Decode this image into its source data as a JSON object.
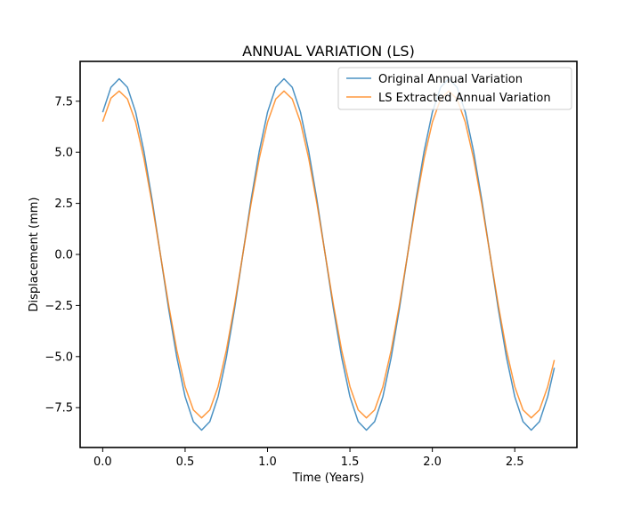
{
  "chart_data": {
    "type": "line",
    "title": "ANNUAL VARIATION (LS)",
    "xlabel": "Time (Years)",
    "ylabel": "Displacement (mm)",
    "xlim": [
      -0.137,
      2.877
    ],
    "ylim": [
      -9.45,
      9.45
    ],
    "xticks": [
      0.0,
      0.5,
      1.0,
      1.5,
      2.0,
      2.5
    ],
    "xtick_labels": [
      "0.0",
      "0.5",
      "1.0",
      "1.5",
      "2.0",
      "2.5"
    ],
    "yticks": [
      -7.5,
      -5.0,
      -2.5,
      0.0,
      2.5,
      5.0,
      7.5
    ],
    "ytick_labels": [
      "−7.5",
      "−5.0",
      "−2.5",
      "0.0",
      "2.5",
      "5.0",
      "7.5"
    ],
    "grid": false,
    "legend_position": "top-right",
    "series": [
      {
        "name": "Original Annual Variation",
        "color": "#1f77b4",
        "x": [
          0.0,
          0.05,
          0.1,
          0.15,
          0.2,
          0.25,
          0.3,
          0.35,
          0.4,
          0.45,
          0.5,
          0.55,
          0.6,
          0.65,
          0.7,
          0.75,
          0.8,
          0.85,
          0.9,
          0.95,
          1.0,
          1.05,
          1.1,
          1.15,
          1.2,
          1.25,
          1.3,
          1.35,
          1.4,
          1.45,
          1.5,
          1.55,
          1.6,
          1.65,
          1.7,
          1.75,
          1.8,
          1.85,
          1.9,
          1.95,
          2.0,
          2.05,
          2.1,
          2.15,
          2.2,
          2.25,
          2.3,
          2.35,
          2.4,
          2.45,
          2.5,
          2.55,
          2.6,
          2.65,
          2.7,
          2.74
        ],
        "y": [
          6.96,
          8.18,
          8.6,
          8.18,
          6.96,
          5.05,
          2.66,
          0.0,
          -2.66,
          -5.05,
          -6.96,
          -8.18,
          -8.6,
          -8.18,
          -6.96,
          -5.05,
          -2.66,
          0.0,
          2.66,
          5.05,
          6.96,
          8.18,
          8.6,
          8.18,
          6.96,
          5.05,
          2.66,
          0.0,
          -2.66,
          -5.05,
          -6.96,
          -8.18,
          -8.6,
          -8.18,
          -6.96,
          -5.05,
          -2.66,
          0.0,
          2.66,
          5.05,
          6.96,
          8.18,
          8.6,
          8.18,
          6.96,
          5.05,
          2.66,
          0.0,
          -2.66,
          -5.05,
          -6.96,
          -8.18,
          -8.6,
          -8.18,
          -6.96,
          -5.55
        ]
      },
      {
        "name": "LS Extracted Annual Variation",
        "color": "#ff7f0e",
        "x": [
          0.0,
          0.05,
          0.1,
          0.15,
          0.2,
          0.25,
          0.3,
          0.35,
          0.4,
          0.45,
          0.5,
          0.55,
          0.6,
          0.65,
          0.7,
          0.75,
          0.8,
          0.85,
          0.9,
          0.95,
          1.0,
          1.05,
          1.1,
          1.15,
          1.2,
          1.25,
          1.3,
          1.35,
          1.4,
          1.45,
          1.5,
          1.55,
          1.6,
          1.65,
          1.7,
          1.75,
          1.8,
          1.85,
          1.9,
          1.95,
          2.0,
          2.05,
          2.1,
          2.15,
          2.2,
          2.25,
          2.3,
          2.35,
          2.4,
          2.45,
          2.5,
          2.55,
          2.6,
          2.65,
          2.7,
          2.74
        ],
        "y": [
          6.5,
          7.65,
          8.0,
          7.61,
          6.47,
          4.7,
          2.47,
          0.0,
          -2.47,
          -4.7,
          -6.47,
          -7.61,
          -8.0,
          -7.61,
          -6.47,
          -4.7,
          -2.47,
          0.0,
          2.47,
          4.7,
          6.47,
          7.61,
          8.0,
          7.61,
          6.47,
          4.7,
          2.47,
          0.0,
          -2.47,
          -4.7,
          -6.47,
          -7.61,
          -8.0,
          -7.61,
          -6.47,
          -4.7,
          -2.47,
          0.0,
          2.47,
          4.7,
          6.47,
          7.61,
          8.0,
          7.61,
          6.47,
          4.7,
          2.47,
          0.0,
          -2.47,
          -4.7,
          -6.47,
          -7.61,
          -8.0,
          -7.61,
          -6.47,
          -5.17
        ]
      }
    ]
  }
}
